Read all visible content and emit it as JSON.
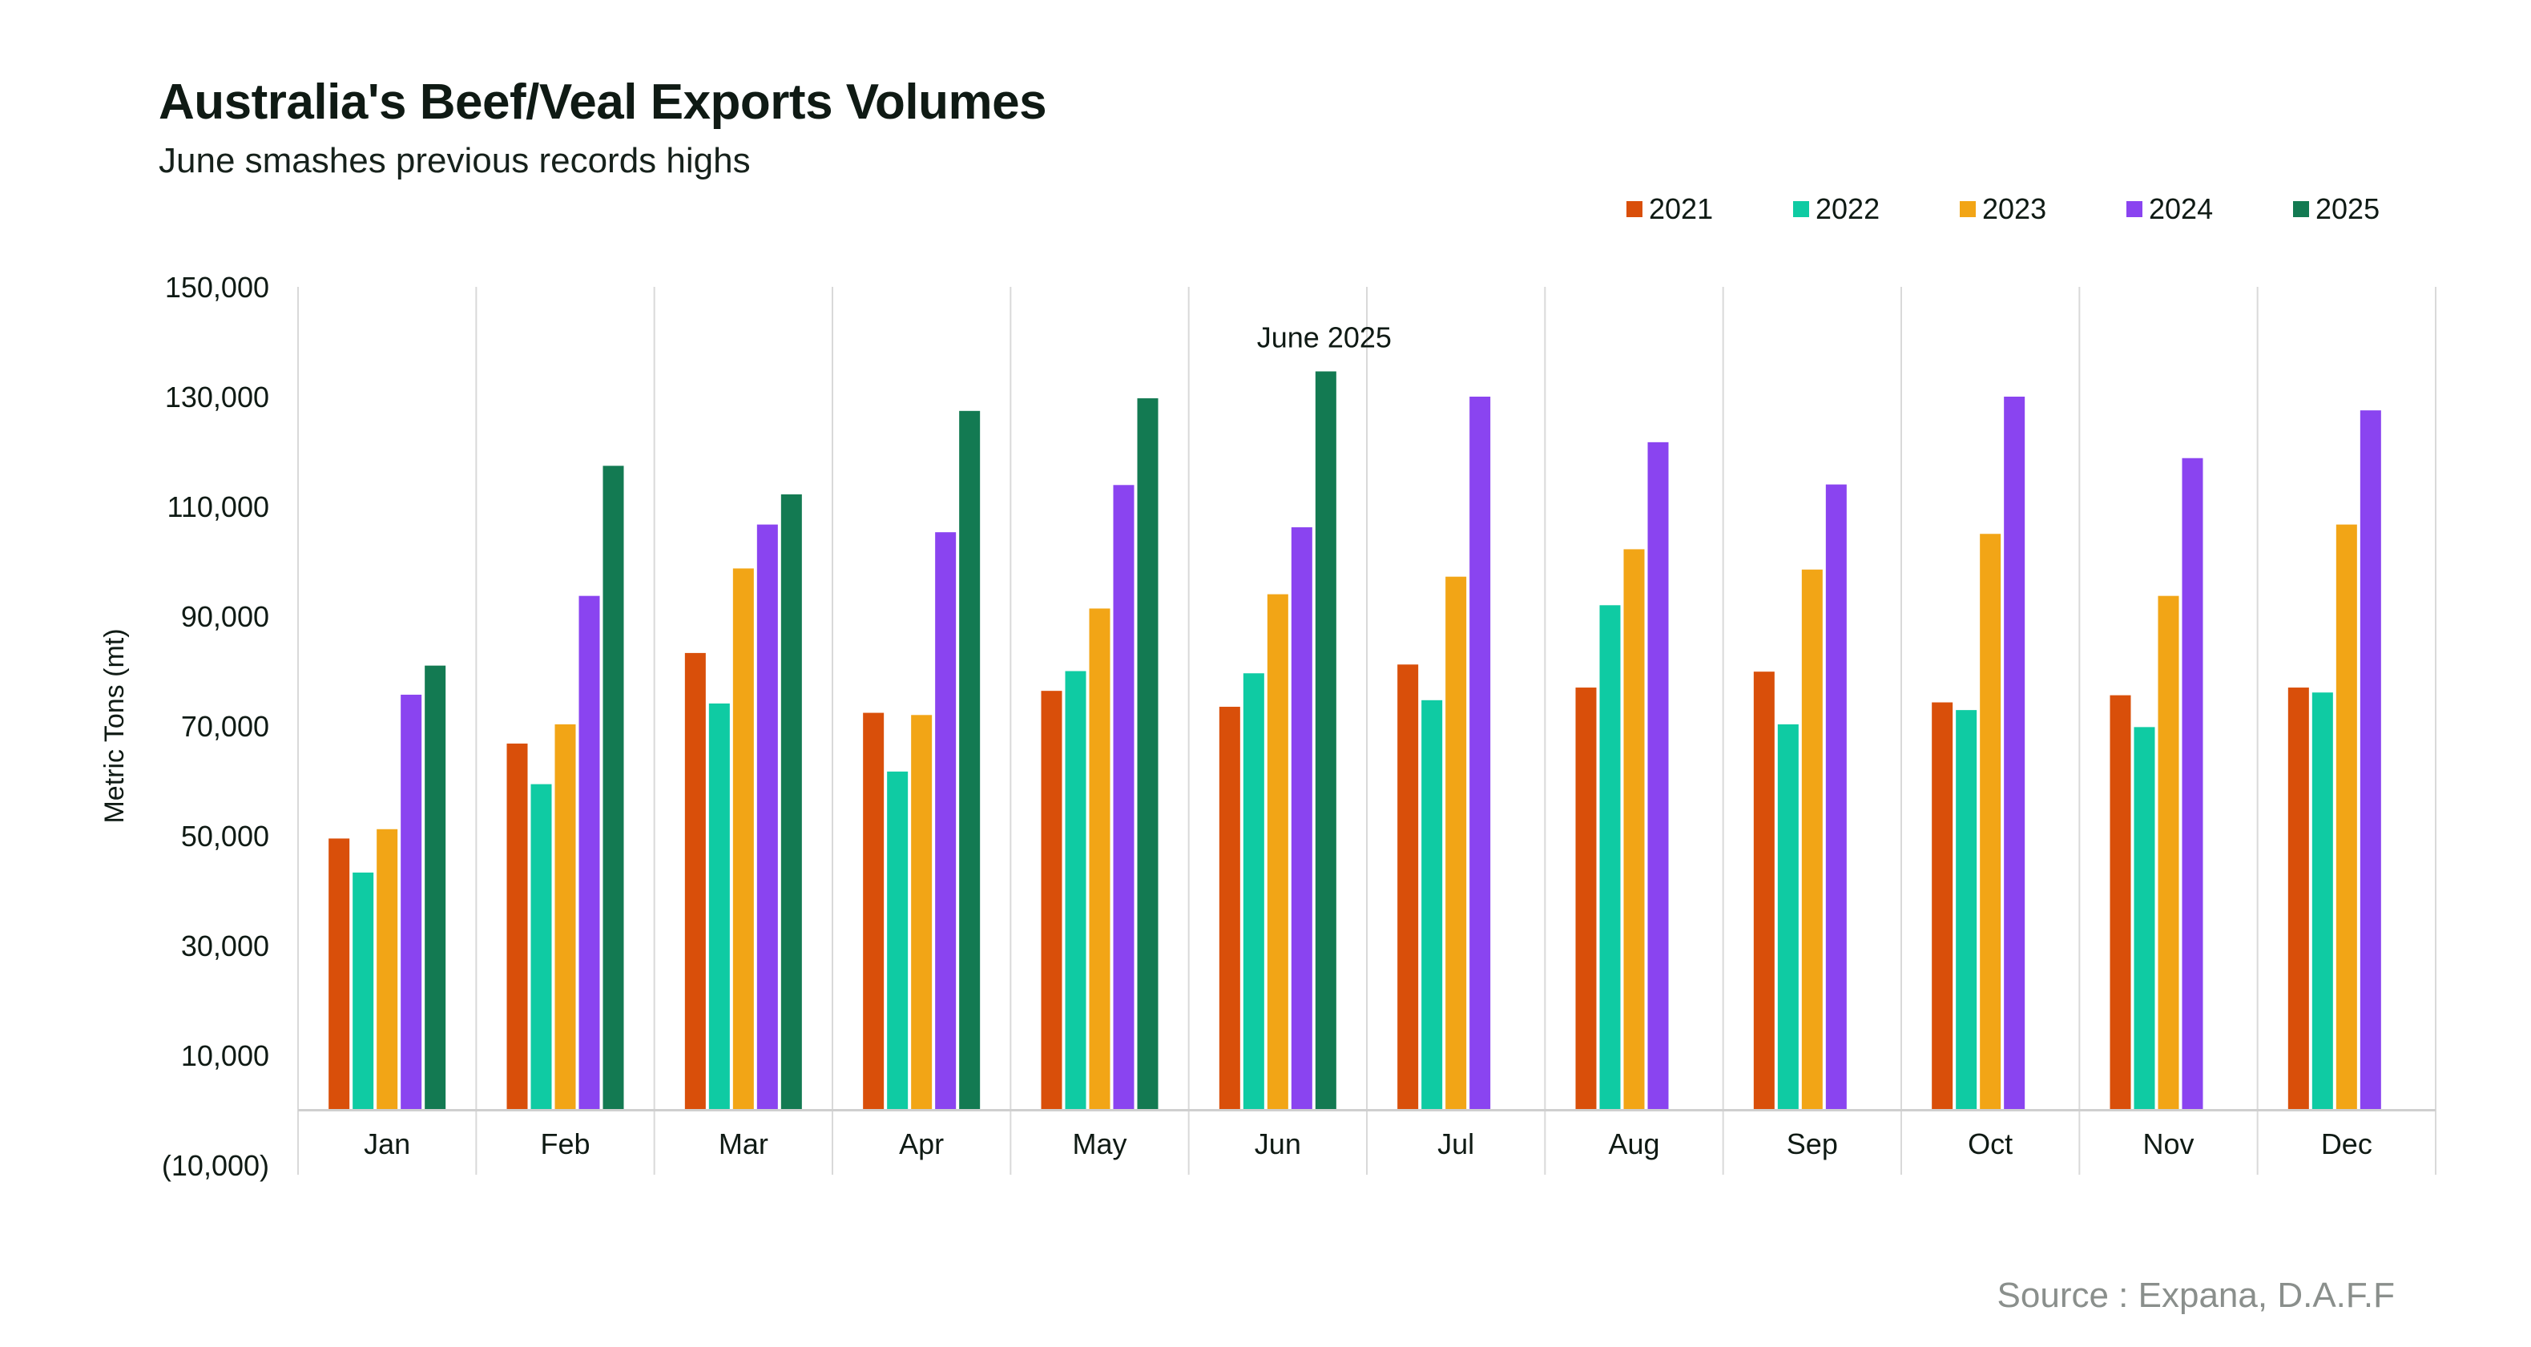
{
  "header": {
    "title": "Australia's Beef/Veal Exports Volumes",
    "subtitle": "June smashes previous records highs"
  },
  "source": "Source : Expana, D.A.F.F",
  "chart_data": {
    "type": "bar",
    "title": "Australia's Beef/Veal Exports Volumes",
    "subtitle": "June smashes previous records highs",
    "xlabel": "",
    "ylabel": "Metric Tons (mt)",
    "ylim": [
      -10000,
      150000
    ],
    "yticks": [
      -10000,
      10000,
      30000,
      50000,
      70000,
      90000,
      110000,
      130000,
      150000
    ],
    "ytick_labels": [
      "(10,000)",
      "10,000",
      "30,000",
      "50,000",
      "70,000",
      "90,000",
      "110,000",
      "130,000",
      "150,000"
    ],
    "categories": [
      "Jan",
      "Feb",
      "Mar",
      "Apr",
      "May",
      "Jun",
      "Jul",
      "Aug",
      "Sep",
      "Oct",
      "Nov",
      "Dec"
    ],
    "legend_position": "top-right",
    "grid": "vertical category separators",
    "series": [
      {
        "name": "2021",
        "color": "#d94f0a",
        "values": [
          49500,
          66800,
          83300,
          72400,
          76400,
          73500,
          81200,
          77000,
          79900,
          74300,
          75600,
          77000
        ]
      },
      {
        "name": "2022",
        "color": "#0fcba3",
        "values": [
          43300,
          59400,
          74100,
          61700,
          80000,
          79600,
          74700,
          92000,
          70300,
          72900,
          69800,
          76100
        ]
      },
      {
        "name": "2023",
        "color": "#f2a516",
        "values": [
          51200,
          70300,
          98700,
          72000,
          91400,
          94000,
          97200,
          102200,
          98500,
          105000,
          93700,
          106700
        ]
      },
      {
        "name": "2024",
        "color": "#8a44f0",
        "values": [
          75700,
          93700,
          106700,
          105300,
          113900,
          106200,
          130000,
          121700,
          114000,
          130000,
          118800,
          127500
        ]
      },
      {
        "name": "2025",
        "color": "#137a52",
        "values": [
          81000,
          117400,
          112200,
          127400,
          129700,
          134600,
          null,
          null,
          null,
          null,
          null,
          null
        ]
      }
    ],
    "annotations": [
      {
        "text": "June 2025",
        "category": "Jun",
        "series": "2025"
      }
    ]
  }
}
